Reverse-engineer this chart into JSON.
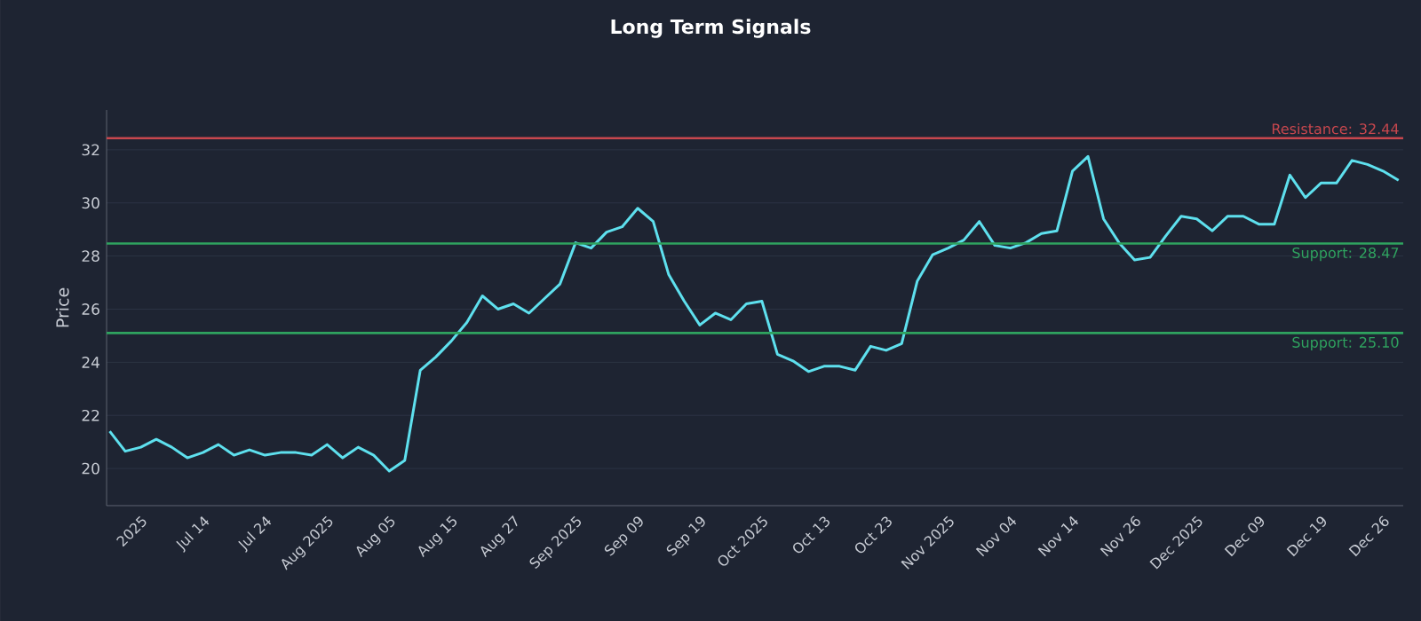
{
  "chart_data": {
    "type": "line",
    "title": "Long Term Signals",
    "ylabel": "Price",
    "categories": [
      null,
      null,
      "2025",
      null,
      null,
      null,
      "Jul 14",
      null,
      null,
      null,
      "Jul 24",
      null,
      null,
      null,
      "Aug 2025",
      null,
      null,
      null,
      "Aug 05",
      null,
      null,
      null,
      "Aug 15",
      null,
      null,
      null,
      "Aug 27",
      null,
      null,
      null,
      "Sep 2025",
      null,
      null,
      null,
      "Sep 09",
      null,
      null,
      null,
      "Sep 19",
      null,
      null,
      null,
      "Oct 2025",
      null,
      null,
      null,
      "Oct 13",
      null,
      null,
      null,
      "Oct 23",
      null,
      null,
      null,
      "Nov 2025",
      null,
      null,
      null,
      "Nov 04",
      null,
      null,
      null,
      "Nov 14",
      null,
      null,
      null,
      "Nov 26",
      null,
      null,
      null,
      "Dec 2025",
      null,
      null,
      null,
      "Dec 09",
      null,
      null,
      null,
      "Dec 19",
      null,
      null,
      null,
      "Dec 26",
      null
    ],
    "series": [
      {
        "color": "#5ee0ee",
        "values": [
          21.4,
          20.65,
          20.8,
          21.1,
          20.8,
          20.4,
          20.6,
          20.9,
          20.5,
          20.7,
          20.5,
          20.6,
          20.6,
          20.5,
          20.9,
          20.4,
          20.8,
          20.5,
          19.9,
          20.3,
          23.7,
          24.2,
          24.8,
          25.5,
          26.5,
          26.0,
          26.2,
          25.85,
          26.4,
          26.95,
          28.5,
          28.3,
          28.9,
          29.1,
          29.8,
          29.3,
          27.3,
          26.3,
          25.4,
          25.85,
          25.6,
          26.2,
          26.3,
          24.3,
          24.05,
          23.65,
          23.85,
          23.85,
          23.7,
          24.6,
          24.45,
          24.7,
          27.05,
          28.05,
          28.3,
          28.6,
          29.3,
          28.4,
          28.3,
          28.5,
          28.85,
          28.95,
          31.2,
          31.75,
          29.4,
          28.5,
          27.85,
          27.95,
          28.75,
          29.5,
          29.4,
          28.95,
          29.5,
          29.5,
          29.2,
          29.2,
          31.05,
          30.2,
          30.75,
          30.75,
          31.6,
          31.45,
          31.2,
          30.85
        ]
      }
    ],
    "ylim": [
      18.6,
      33.5
    ],
    "yticks": [
      20,
      22,
      24,
      26,
      28,
      30,
      32
    ],
    "grid": "y",
    "ref_lines": [
      {
        "axis": "y",
        "value": 32.44,
        "label": "Resistance: 32.44",
        "color": "#c8474e"
      },
      {
        "axis": "y",
        "value": 28.47,
        "label": "Support: 28.47",
        "color": "#2fa35f"
      },
      {
        "axis": "y",
        "value": 25.1,
        "label": "Support: 25.10",
        "color": "#2fa35f"
      }
    ]
  }
}
